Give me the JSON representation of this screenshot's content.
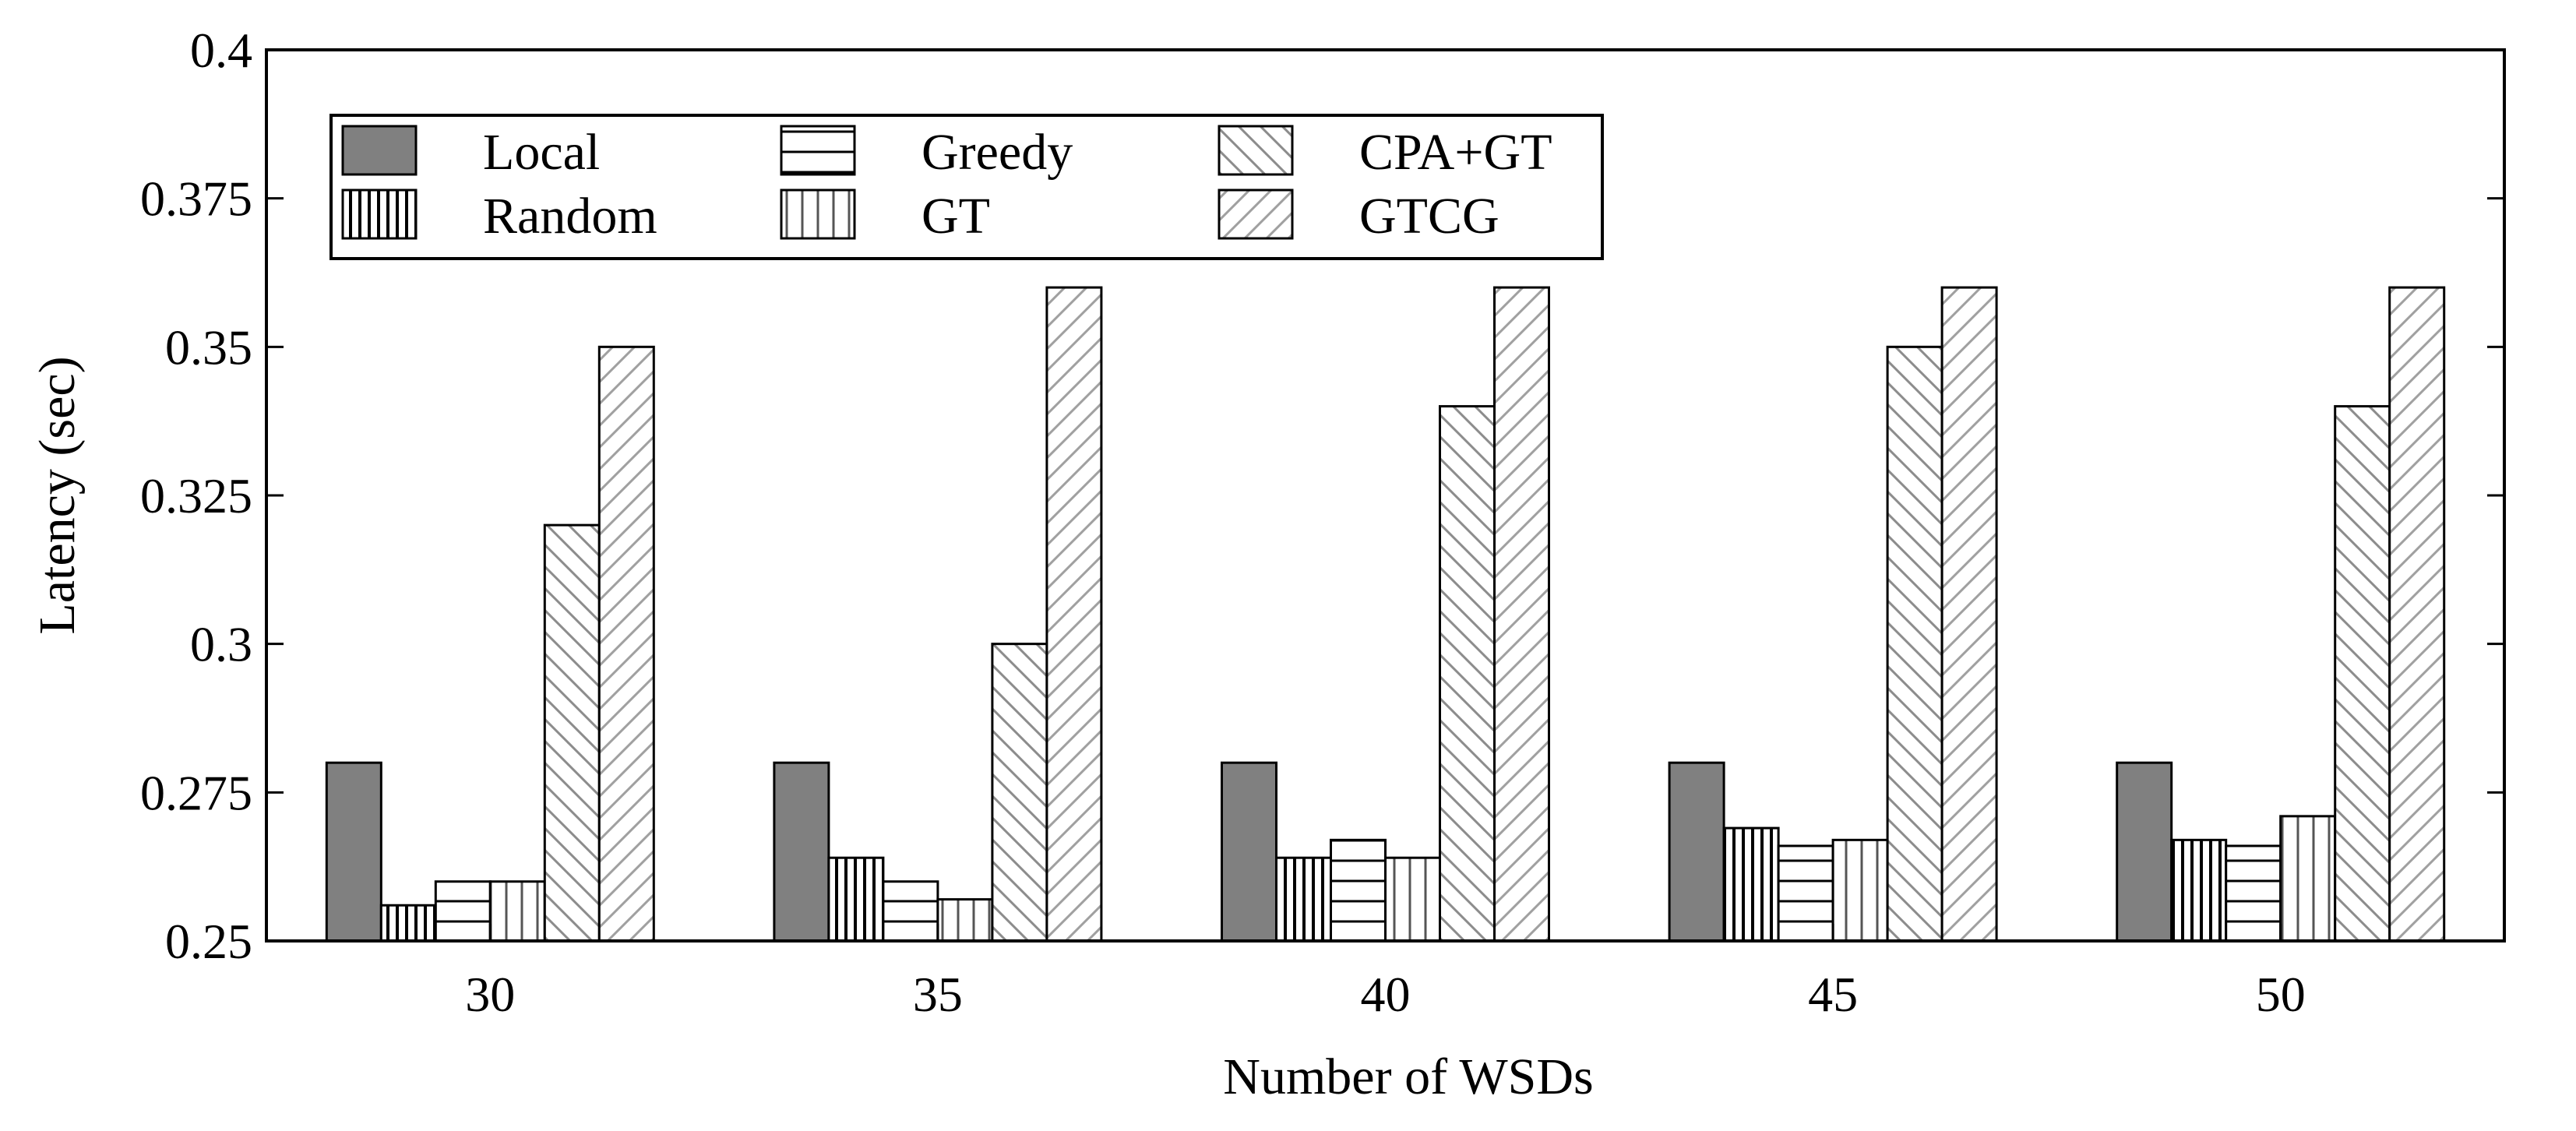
{
  "chart_data": {
    "type": "bar",
    "title": "",
    "xlabel": "Number of WSDs",
    "ylabel": "Latency (sec)",
    "categories": [
      "30",
      "35",
      "40",
      "45",
      "50"
    ],
    "ylim": [
      0.25,
      0.4
    ],
    "yticks": [
      0.25,
      0.275,
      0.3,
      0.325,
      0.35,
      0.375,
      0.4
    ],
    "ytick_labels": [
      "0.25",
      "0.275",
      "0.3",
      "0.325",
      "0.35",
      "0.375",
      "0.4"
    ],
    "grid": false,
    "legend_position": "top-left",
    "series": [
      {
        "name": "Local",
        "pattern": "solid-gray",
        "values": [
          0.28,
          0.28,
          0.28,
          0.28,
          0.28
        ]
      },
      {
        "name": "Random",
        "pattern": "dense-vertical",
        "values": [
          0.256,
          0.264,
          0.264,
          0.269,
          0.267
        ]
      },
      {
        "name": "Greedy",
        "pattern": "horizontal",
        "values": [
          0.26,
          0.26,
          0.267,
          0.266,
          0.266
        ]
      },
      {
        "name": "GT",
        "pattern": "sparse-vertical",
        "values": [
          0.26,
          0.257,
          0.264,
          0.267,
          0.271
        ]
      },
      {
        "name": "CPA+GT",
        "pattern": "back-diagonal",
        "values": [
          0.32,
          0.3,
          0.34,
          0.35,
          0.34
        ]
      },
      {
        "name": "GTCG",
        "pattern": "forward-diagonal",
        "values": [
          0.35,
          0.36,
          0.36,
          0.36,
          0.36
        ]
      }
    ]
  },
  "colors": {
    "local_fill": "#808080",
    "stroke": "#000000",
    "hatch": "#8c8c8c",
    "background": "#ffffff"
  }
}
